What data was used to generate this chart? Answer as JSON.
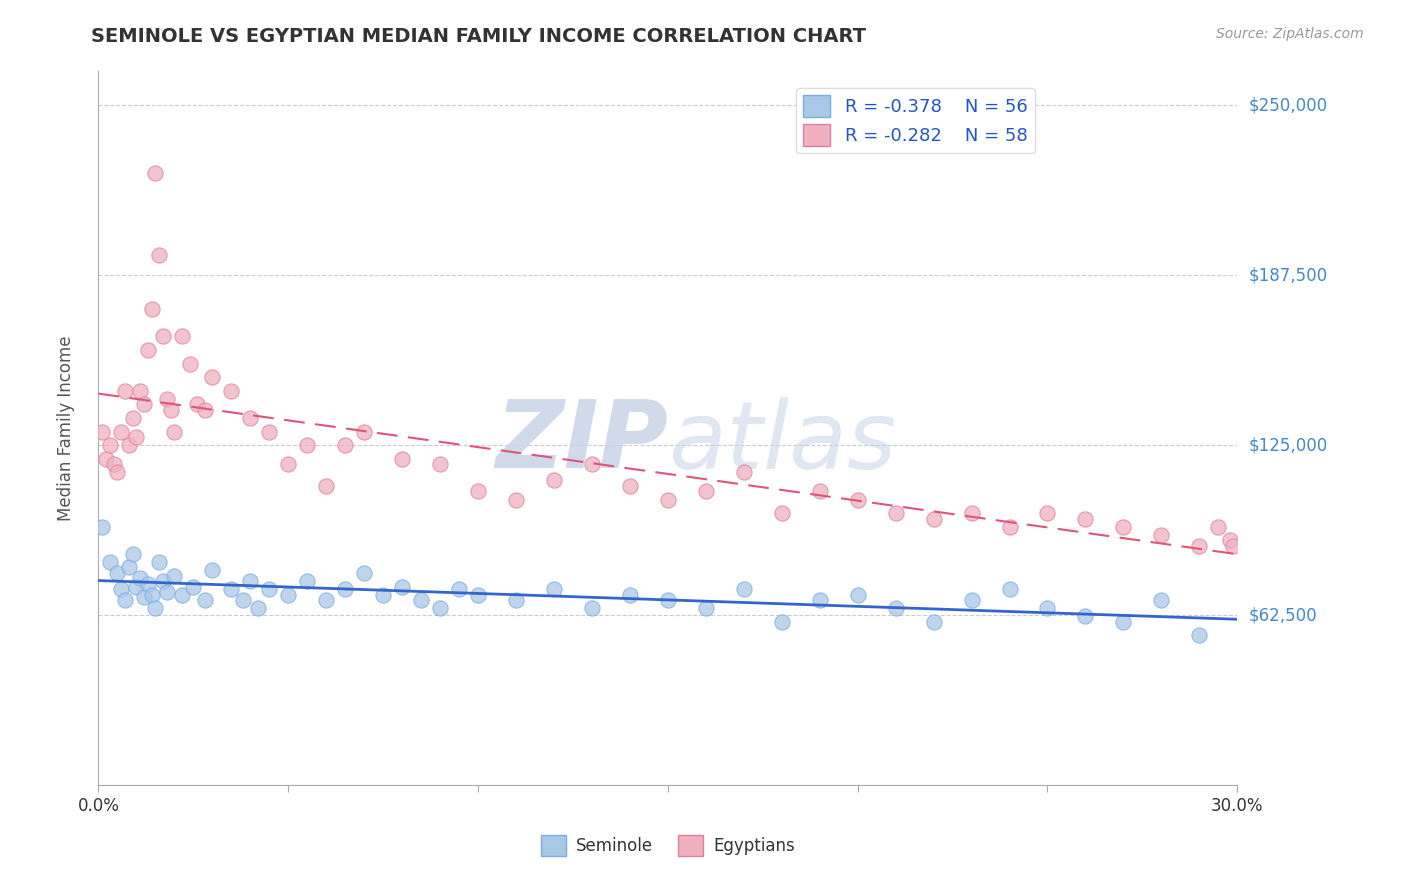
{
  "title": "SEMINOLE VS EGYPTIAN MEDIAN FAMILY INCOME CORRELATION CHART",
  "source_text": "Source: ZipAtlas.com",
  "ylabel": "Median Family Income",
  "xlim": [
    0.0,
    0.3
  ],
  "ylim": [
    0,
    262500
  ],
  "yticks": [
    0,
    62500,
    125000,
    187500,
    250000
  ],
  "ytick_labels": [
    "",
    "$62,500",
    "$125,000",
    "$187,500",
    "$250,000"
  ],
  "xtick_vals": [
    0.0,
    0.05,
    0.1,
    0.15,
    0.2,
    0.25,
    0.3
  ],
  "background_color": "#ffffff",
  "grid_color": "#cccccc",
  "seminole_color": "#a8c8e8",
  "seminole_edge_color": "#7aade0",
  "egyptians_color": "#f0b0c0",
  "egyptians_edge_color": "#e080a0",
  "seminole_line_color": "#3366cc",
  "egyptians_line_color": "#e05575",
  "legend_R_seminole": "R = -0.378",
  "legend_N_seminole": "N = 56",
  "legend_R_egyptians": "R = -0.282",
  "legend_N_egyptians": "N = 58",
  "title_color": "#333333",
  "axis_label_color": "#555555",
  "ytick_color": "#4488cc",
  "legend_text_color": "#2255cc",
  "seminole_x": [
    0.001,
    0.003,
    0.005,
    0.006,
    0.007,
    0.008,
    0.009,
    0.01,
    0.011,
    0.012,
    0.013,
    0.014,
    0.015,
    0.016,
    0.017,
    0.018,
    0.02,
    0.022,
    0.025,
    0.028,
    0.03,
    0.035,
    0.038,
    0.04,
    0.042,
    0.045,
    0.05,
    0.055,
    0.06,
    0.065,
    0.07,
    0.075,
    0.08,
    0.085,
    0.09,
    0.095,
    0.1,
    0.11,
    0.12,
    0.13,
    0.14,
    0.15,
    0.16,
    0.17,
    0.18,
    0.19,
    0.2,
    0.21,
    0.22,
    0.23,
    0.24,
    0.25,
    0.26,
    0.27,
    0.28,
    0.29
  ],
  "seminole_y": [
    95000,
    82000,
    78000,
    72000,
    68000,
    80000,
    85000,
    73000,
    76000,
    69000,
    74000,
    70000,
    65000,
    82000,
    75000,
    71000,
    77000,
    70000,
    73000,
    68000,
    79000,
    72000,
    68000,
    75000,
    65000,
    72000,
    70000,
    75000,
    68000,
    72000,
    78000,
    70000,
    73000,
    68000,
    65000,
    72000,
    70000,
    68000,
    72000,
    65000,
    70000,
    68000,
    65000,
    72000,
    60000,
    68000,
    70000,
    65000,
    60000,
    68000,
    72000,
    65000,
    62000,
    60000,
    68000,
    55000
  ],
  "egyptians_x": [
    0.001,
    0.002,
    0.003,
    0.004,
    0.005,
    0.006,
    0.007,
    0.008,
    0.009,
    0.01,
    0.011,
    0.012,
    0.013,
    0.014,
    0.015,
    0.016,
    0.017,
    0.018,
    0.019,
    0.02,
    0.022,
    0.024,
    0.026,
    0.028,
    0.03,
    0.035,
    0.04,
    0.045,
    0.05,
    0.055,
    0.06,
    0.065,
    0.07,
    0.08,
    0.09,
    0.1,
    0.11,
    0.12,
    0.13,
    0.14,
    0.15,
    0.16,
    0.17,
    0.18,
    0.19,
    0.2,
    0.21,
    0.22,
    0.23,
    0.24,
    0.25,
    0.26,
    0.27,
    0.28,
    0.29,
    0.295,
    0.298,
    0.299
  ],
  "egyptians_y": [
    130000,
    120000,
    125000,
    118000,
    115000,
    130000,
    145000,
    125000,
    135000,
    128000,
    145000,
    140000,
    160000,
    175000,
    225000,
    195000,
    165000,
    142000,
    138000,
    130000,
    165000,
    155000,
    140000,
    138000,
    150000,
    145000,
    135000,
    130000,
    118000,
    125000,
    110000,
    125000,
    130000,
    120000,
    118000,
    108000,
    105000,
    112000,
    118000,
    110000,
    105000,
    108000,
    115000,
    100000,
    108000,
    105000,
    100000,
    98000,
    100000,
    95000,
    100000,
    98000,
    95000,
    92000,
    88000,
    95000,
    90000,
    88000
  ]
}
